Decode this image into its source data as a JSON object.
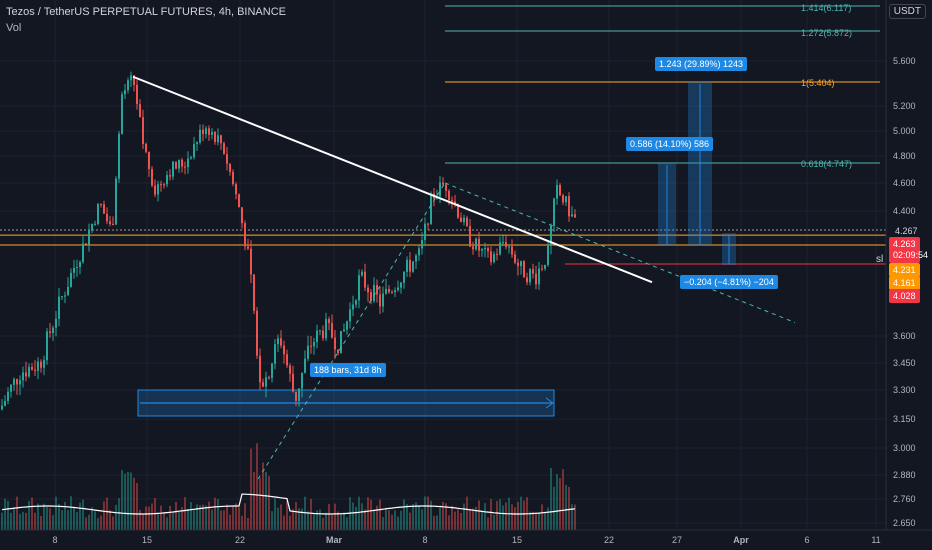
{
  "header": {
    "title": "Tezos / TetherUS PERPETUAL FUTURES, 4h, BINANCE",
    "indicator": "Vol"
  },
  "currency_label": "USDT",
  "price_tags": {
    "current": "4.263",
    "countdown": "02:09:54",
    "level_a": "4.267",
    "level_b": "4.231",
    "level_c": "4.161",
    "level_d": "4.028",
    "sl_label": "sl"
  },
  "fib_labels": {
    "f1414": "1.414(6.117)",
    "f1272": "1.272(5.872)",
    "f1": "1(5.404)",
    "f0618": "0.618(4.747)"
  },
  "measure_labels": {
    "range_bars": "188 bars, 31d 8h",
    "up_small": "0.586 (14.10%) 586",
    "up_large": "1.243 (29.89%) 1243",
    "down": "−0.204 (−4.81%) −204"
  },
  "chart_data": {
    "type": "candlestick",
    "title": "Tezos / TetherUS PERPETUAL FUTURES, 4h, BINANCE",
    "y_axis_ticks": [
      "5.600",
      "5.200",
      "5.000",
      "4.800",
      "4.600",
      "4.400",
      "3.600",
      "3.450",
      "3.300",
      "3.150",
      "3.000",
      "2.880",
      "2.760",
      "2.650"
    ],
    "x_axis_ticks": [
      "8",
      "15",
      "22",
      "Mar",
      "8",
      "15",
      "22",
      "27",
      "Apr",
      "6",
      "11"
    ],
    "last_price": 4.263,
    "overlays": {
      "downtrend_line": {
        "from": 5.46,
        "to": 3.92
      },
      "fib_levels": [
        {
          "ratio": 1.414,
          "price": 6.117
        },
        {
          "ratio": 1.272,
          "price": 5.872
        },
        {
          "ratio": 1,
          "price": 5.404
        },
        {
          "ratio": 0.618,
          "price": 4.747
        }
      ],
      "horizontal_levels": [
        4.267,
        4.231,
        4.161
      ],
      "stop_loss": 4.028
    },
    "colors": {
      "up": "#26a69a",
      "down": "#ef5350",
      "fib_teal": "#4db6ac",
      "fib_one": "#ffa726",
      "measure_blue": "#1e88e5",
      "stop_loss": "#f23645"
    }
  }
}
